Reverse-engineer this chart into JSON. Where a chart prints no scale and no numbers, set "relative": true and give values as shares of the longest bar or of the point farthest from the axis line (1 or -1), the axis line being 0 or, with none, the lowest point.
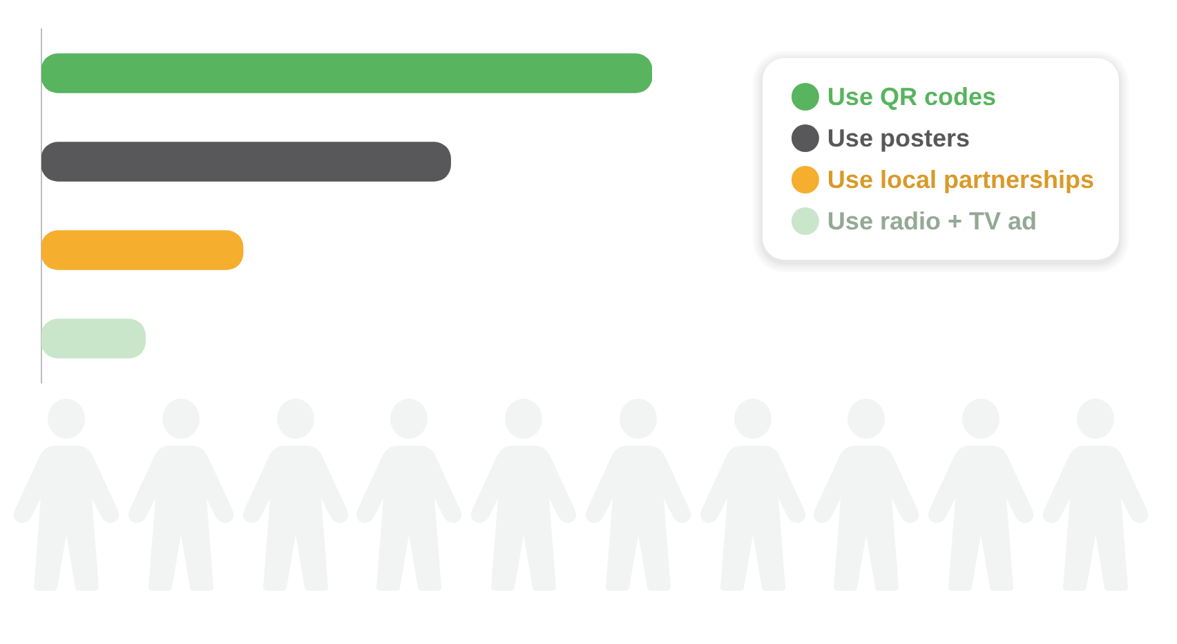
{
  "chart_data": {
    "type": "bar",
    "orientation": "horizontal",
    "relative": true,
    "stacked": true,
    "categories": [
      null,
      null,
      null,
      null
    ],
    "series": [
      {
        "name": "Use QR codes",
        "color": "#58b45e",
        "values": [
          1,
          null,
          null,
          null
        ]
      },
      {
        "name": "Use posters",
        "color": "#58585a",
        "values": [
          null,
          0.67,
          null,
          null
        ]
      },
      {
        "name": "Use local partnerships",
        "color": "#f5ae2e",
        "values": [
          null,
          null,
          0.33,
          null
        ]
      },
      {
        "name": "Use radio + TV ad",
        "color": "#c9e6ca",
        "values": [
          null,
          null,
          null,
          0.17
        ]
      }
    ],
    "legend": "top right"
  }
}
